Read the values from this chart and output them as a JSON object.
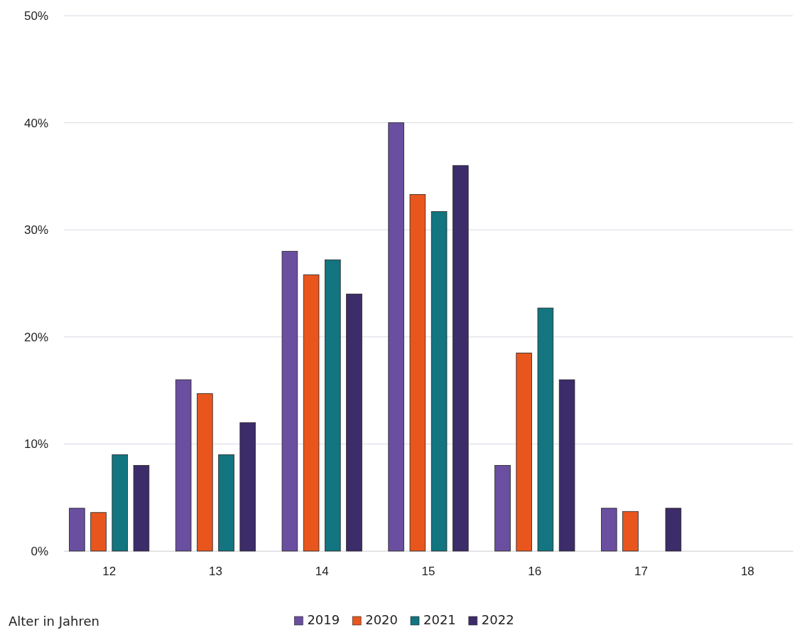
{
  "chart_data": {
    "type": "bar",
    "xlabel": "Alter in Jahren",
    "categories": [
      "12",
      "13",
      "14",
      "15",
      "16",
      "17",
      "18"
    ],
    "series": [
      {
        "name": "2019",
        "color": "#6a4fa0",
        "values": [
          4,
          16,
          28,
          40,
          8,
          4,
          0
        ]
      },
      {
        "name": "2020",
        "color": "#e8561e",
        "values": [
          3.6,
          14.7,
          25.8,
          33.3,
          18.5,
          3.7,
          0
        ]
      },
      {
        "name": "2021",
        "color": "#127580",
        "values": [
          9,
          9,
          27.2,
          31.7,
          22.7,
          0,
          0
        ]
      },
      {
        "name": "2022",
        "color": "#3d2c6a",
        "values": [
          8,
          12,
          24,
          36,
          16,
          4,
          0
        ]
      }
    ],
    "ylim": [
      0,
      50
    ],
    "yticks": [
      {
        "value": 0,
        "label": "0%"
      },
      {
        "value": 10,
        "label": "10%"
      },
      {
        "value": 20,
        "label": "20%"
      },
      {
        "value": 30,
        "label": "30%"
      },
      {
        "value": 40,
        "label": "40%"
      },
      {
        "value": 50,
        "label": "50%"
      }
    ],
    "grid": "y",
    "legend": "bottom"
  }
}
